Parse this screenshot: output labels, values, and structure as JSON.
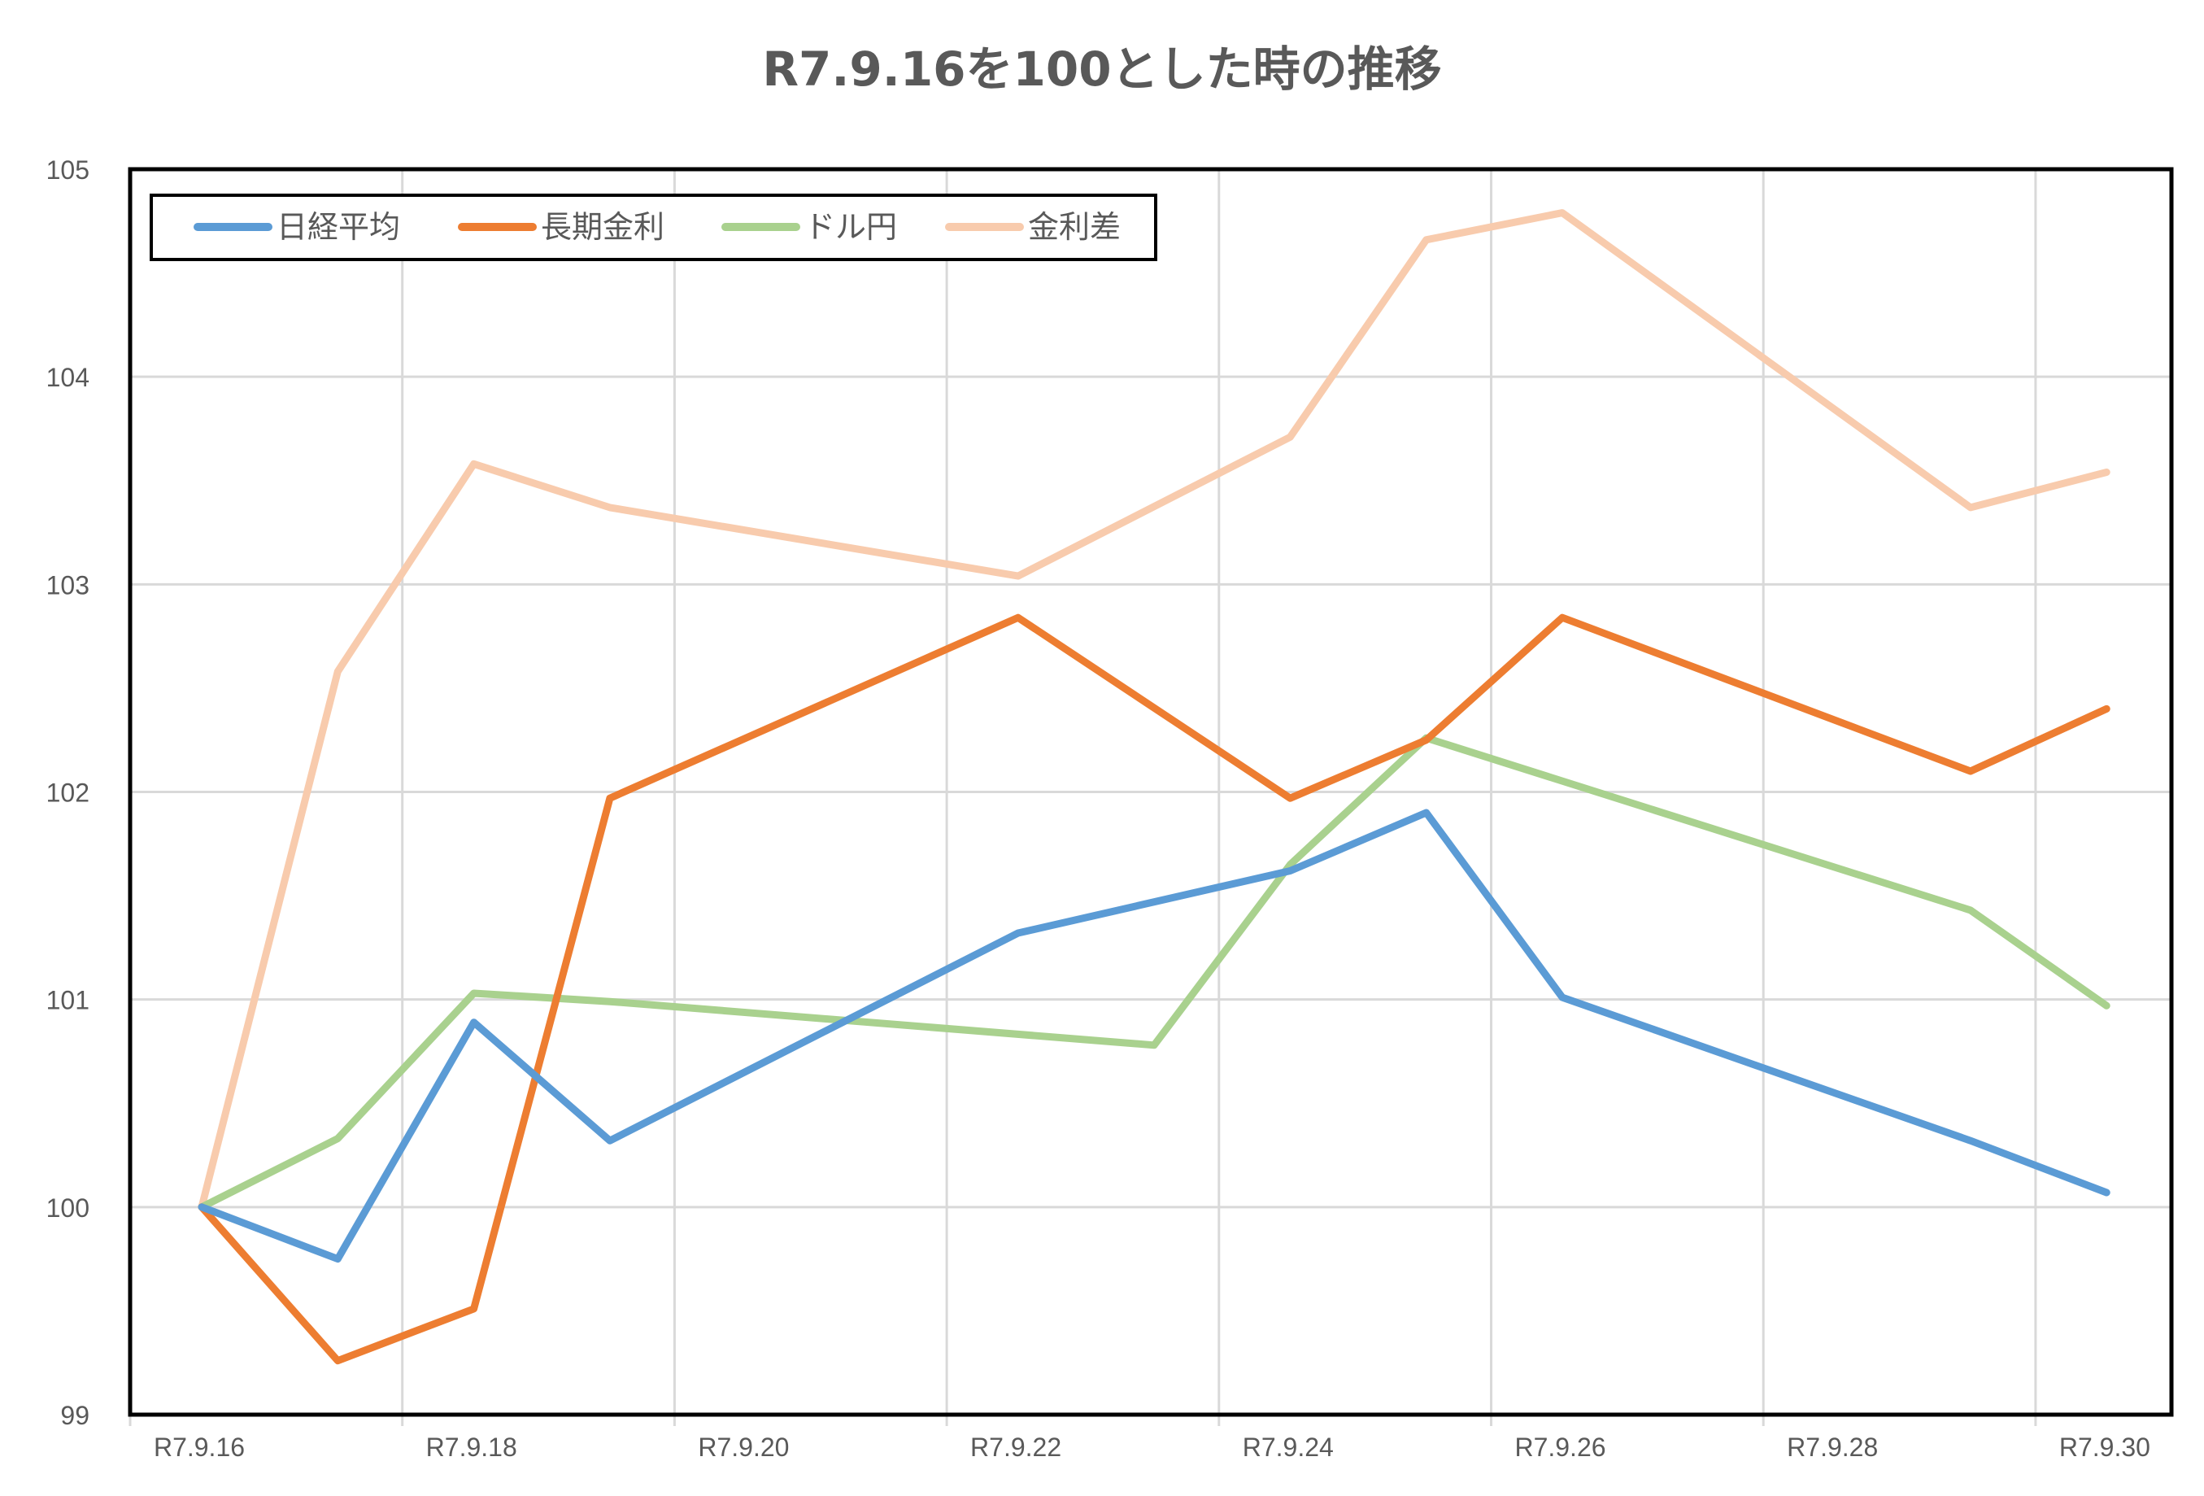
{
  "chart_data": {
    "type": "line",
    "title": "R7.9.16を100とした時の推移",
    "xlabel": "",
    "ylabel": "",
    "ylim": [
      99,
      105
    ],
    "yticks": [
      99,
      100,
      101,
      102,
      103,
      104,
      105
    ],
    "grid": true,
    "legend_position": "top-left inside",
    "x_tick_labels": [
      "R7.9.16",
      "R7.9.18",
      "R7.9.20",
      "R7.9.22",
      "R7.9.24",
      "R7.9.26",
      "R7.9.28",
      "R7.9.30"
    ],
    "x_range_days": [
      16,
      30
    ],
    "series": [
      {
        "name": "日経平均",
        "color": "#5b9bd5",
        "points": [
          [
            16,
            100.0
          ],
          [
            17,
            99.75
          ],
          [
            18,
            100.89
          ],
          [
            19,
            100.32
          ],
          [
            22,
            101.32
          ],
          [
            24,
            101.62
          ],
          [
            25,
            101.9
          ],
          [
            26,
            101.01
          ],
          [
            29,
            100.32
          ],
          [
            30,
            100.07
          ]
        ]
      },
      {
        "name": "長期金利",
        "color": "#ed7d31",
        "points": [
          [
            16,
            100.0
          ],
          [
            17,
            99.26
          ],
          [
            18,
            99.51
          ],
          [
            19,
            101.97
          ],
          [
            22,
            102.84
          ],
          [
            24,
            101.97
          ],
          [
            25,
            102.25
          ],
          [
            26,
            102.84
          ],
          [
            29,
            102.1
          ],
          [
            30,
            102.4
          ]
        ]
      },
      {
        "name": "ドル円",
        "color": "#a9d18e",
        "points": [
          [
            16,
            100.0
          ],
          [
            17,
            100.33
          ],
          [
            18,
            101.03
          ],
          [
            19,
            100.99
          ],
          [
            23,
            100.78
          ],
          [
            24,
            101.65
          ],
          [
            25,
            102.26
          ],
          [
            29,
            101.43
          ],
          [
            30,
            100.97
          ]
        ]
      },
      {
        "name": "金利差",
        "color": "#f8cbad",
        "points": [
          [
            16,
            100.0
          ],
          [
            17,
            102.58
          ],
          [
            18,
            103.58
          ],
          [
            19,
            103.37
          ],
          [
            22,
            103.04
          ],
          [
            24,
            103.71
          ],
          [
            25,
            104.66
          ],
          [
            26,
            104.79
          ],
          [
            29,
            103.37
          ],
          [
            30,
            103.54
          ]
        ]
      }
    ]
  },
  "legend": [
    {
      "label": "日経平均"
    },
    {
      "label": "長期金利"
    },
    {
      "label": "ドル円"
    },
    {
      "label": "金利差"
    }
  ]
}
